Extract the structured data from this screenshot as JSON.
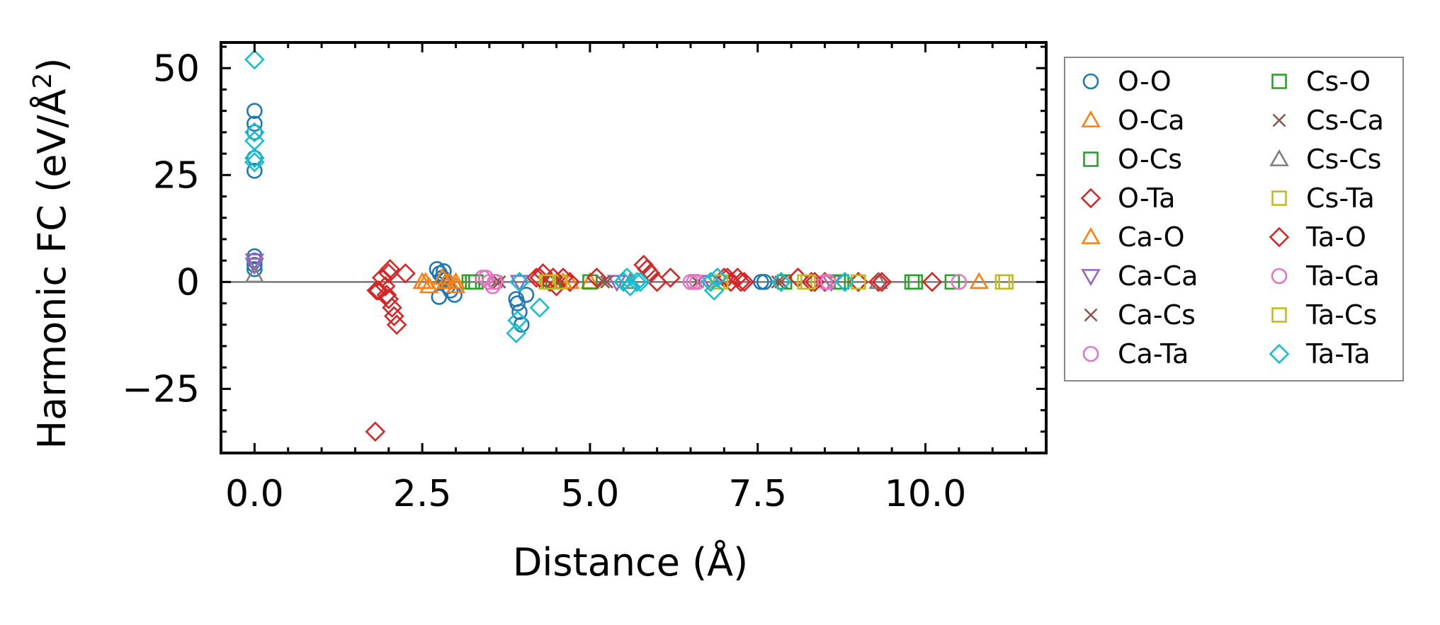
{
  "chart_data": {
    "type": "scatter",
    "xlabel": "Distance (Å)",
    "ylabel_main": "Harmonic FC (eV/Å",
    "ylabel_sup": "2",
    "ylabel_close": ")",
    "xlim": [
      -0.5,
      11.8
    ],
    "ylim": [
      -40,
      56
    ],
    "xticks": [
      {
        "v": 0.0,
        "label": "0.0"
      },
      {
        "v": 2.5,
        "label": "2.5"
      },
      {
        "v": 5.0,
        "label": "5.0"
      },
      {
        "v": 7.5,
        "label": "7.5"
      },
      {
        "v": 10.0,
        "label": "10.0"
      }
    ],
    "yticks": [
      {
        "v": 50,
        "label": "50"
      },
      {
        "v": 25,
        "label": "25"
      },
      {
        "v": 0,
        "label": "0"
      },
      {
        "v": -25,
        "label": "−25"
      }
    ],
    "x_minor_step": 0.5,
    "y_minor_step": 5,
    "zero_line": true,
    "legend_position": "outside-right",
    "legend_columns": 2,
    "series": [
      {
        "name": "O-O",
        "marker": "circle",
        "color": "#1f77b4",
        "x": [
          0,
          0,
          0,
          0,
          0,
          0,
          0,
          0,
          0,
          2.72,
          2.76,
          2.8,
          2.84,
          2.88,
          2.92,
          2.98,
          2.75,
          2.82,
          3.9,
          3.92,
          3.95,
          3.98,
          4.05,
          7.55,
          7.6
        ],
        "y": [
          40,
          37,
          35,
          29,
          26,
          6,
          5,
          4,
          3,
          3,
          2,
          1,
          0.5,
          -1,
          -2,
          -3,
          -3.5,
          2.5,
          -4,
          -5,
          -7,
          -10,
          -3,
          0,
          0
        ]
      },
      {
        "name": "O-Ca",
        "marker": "triangle-up",
        "color": "#ff7f0e",
        "x": [
          2.5,
          2.6,
          2.8,
          2.9,
          3.0,
          4.5,
          4.7,
          5.0,
          10.8
        ],
        "y": [
          0,
          -1,
          1,
          0,
          -1,
          0,
          0,
          0,
          0
        ]
      },
      {
        "name": "O-Cs",
        "marker": "square",
        "color": "#2ca02c",
        "x": [
          3.2,
          3.3,
          4.4,
          5.0,
          7.9,
          8.7,
          9.8,
          10.4
        ],
        "y": [
          0,
          0,
          0,
          0,
          0,
          0,
          0,
          0
        ]
      },
      {
        "name": "O-Ta",
        "marker": "diamond",
        "color": "#d62728",
        "x": [
          1.8,
          1.82,
          1.9,
          1.95,
          1.97,
          2.0,
          2.02,
          2.05,
          2.08,
          2.12,
          2.25,
          4.2,
          4.3,
          4.4,
          4.5,
          4.6,
          4.7,
          5.1,
          5.8,
          5.9,
          6.0,
          6.2,
          7.0,
          7.1,
          7.2,
          7.3,
          8.1,
          8.3,
          8.5,
          9.0,
          9.3,
          10.1
        ],
        "y": [
          -35,
          -2,
          1,
          -1,
          -3,
          -4,
          3,
          -6,
          -8,
          -10,
          2,
          1,
          2,
          0,
          -1,
          1,
          0,
          1,
          4,
          2,
          0,
          1,
          1,
          0,
          1,
          0,
          1,
          0,
          0,
          0,
          0,
          0
        ]
      },
      {
        "name": "Ca-O",
        "marker": "triangle-up",
        "color": "#ff7f0e",
        "x": [
          2.55,
          2.85,
          3.0,
          4.6
        ],
        "y": [
          0,
          0,
          0,
          0
        ]
      },
      {
        "name": "Ca-Ca",
        "marker": "triangle-down",
        "color": "#9467bd",
        "x": [
          0,
          0,
          3.95,
          5.4,
          6.8,
          8.6
        ],
        "y": [
          4,
          5,
          0,
          0,
          0,
          0
        ]
      },
      {
        "name": "Ca-Cs",
        "marker": "x",
        "color": "#8c564b",
        "x": [
          3.6,
          4.5,
          5.2,
          6.6,
          7.8
        ],
        "y": [
          0,
          0,
          0,
          0,
          0
        ]
      },
      {
        "name": "Ca-Ta",
        "marker": "circle",
        "color": "#e377c2",
        "x": [
          3.4,
          3.5,
          3.55,
          3.6,
          6.5,
          6.6,
          8.5,
          10.5
        ],
        "y": [
          1,
          0,
          -1,
          0,
          0,
          0,
          0,
          0
        ]
      },
      {
        "name": "Cs-O",
        "marker": "square",
        "color": "#2ca02c",
        "x": [
          3.25,
          4.45,
          8.75,
          9.85
        ],
        "y": [
          0,
          0,
          0,
          0
        ]
      },
      {
        "name": "Cs-Ca",
        "marker": "x",
        "color": "#8c564b",
        "x": [
          3.65,
          5.25,
          7.85
        ],
        "y": [
          0,
          0,
          0
        ]
      },
      {
        "name": "Cs-Cs",
        "marker": "triangle-up",
        "color": "#7f7f7f",
        "x": [
          0,
          5.6,
          9.3
        ],
        "y": [
          1.5,
          0,
          0
        ]
      },
      {
        "name": "Cs-Ta",
        "marker": "square",
        "color": "#bcbd22",
        "x": [
          4.35,
          4.55,
          6.9,
          8.2,
          9.0,
          11.2
        ],
        "y": [
          0,
          0,
          0,
          0,
          0,
          0
        ]
      },
      {
        "name": "Ta-O",
        "marker": "diamond",
        "color": "#d62728",
        "x": [
          1.85,
          2.0,
          4.25,
          4.45,
          5.85,
          7.05,
          7.25,
          8.35,
          9.35
        ],
        "y": [
          -2,
          2,
          1,
          1,
          3,
          1,
          0,
          0,
          0
        ]
      },
      {
        "name": "Ta-Ca",
        "marker": "circle",
        "color": "#e377c2",
        "x": [
          3.45,
          3.58,
          6.55,
          8.55
        ],
        "y": [
          1,
          0,
          0,
          0
        ]
      },
      {
        "name": "Ta-Cs",
        "marker": "square",
        "color": "#bcbd22",
        "x": [
          4.38,
          6.95,
          8.25,
          11.15
        ],
        "y": [
          0,
          0,
          0,
          0
        ]
      },
      {
        "name": "Ta-Ta",
        "marker": "diamond",
        "color": "#17becf",
        "x": [
          0,
          0,
          0,
          0,
          0,
          3.9,
          3.92,
          3.95,
          4.25,
          5.5,
          5.55,
          5.6,
          5.7,
          5.75,
          6.8,
          6.85,
          6.9,
          7.85,
          8.8
        ],
        "y": [
          52,
          35,
          33,
          29,
          28,
          -12,
          -9,
          0,
          -6,
          0,
          1,
          -1,
          0,
          0,
          0,
          -2,
          1,
          0,
          0
        ]
      }
    ]
  }
}
